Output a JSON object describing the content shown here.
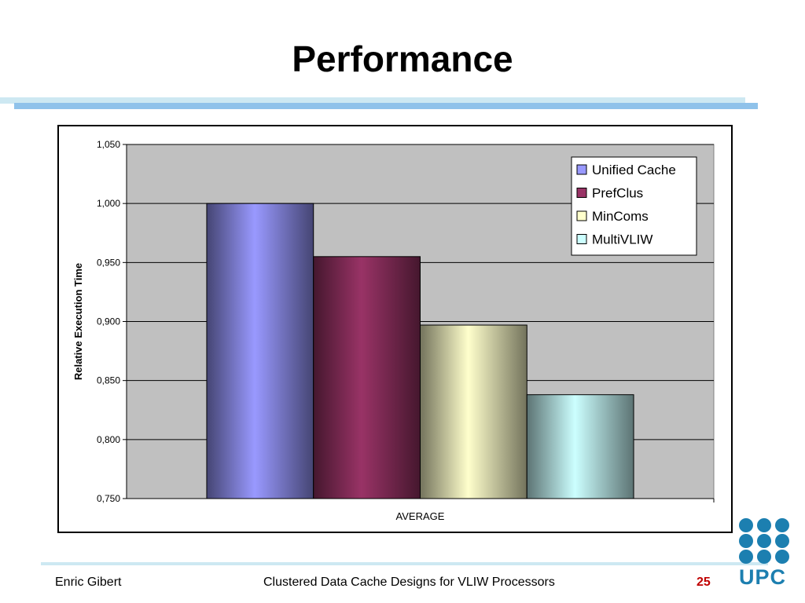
{
  "slide": {
    "title": "Performance",
    "footer_author": "Enric Gibert",
    "footer_center": "Clustered Data Cache Designs for VLIW Processors",
    "page_number": "25",
    "logo_text": "UPC",
    "logo_color": "#1c7fb0"
  },
  "chart_data": {
    "type": "bar",
    "title": "",
    "xlabel": "",
    "ylabel": "Relative Execution Time",
    "categories": [
      "AVERAGE"
    ],
    "series": [
      {
        "name": "Unified Cache",
        "values": [
          1.0
        ],
        "color": "#9999ff"
      },
      {
        "name": "PrefClus",
        "values": [
          0.955
        ],
        "color": "#993366"
      },
      {
        "name": "MinComs",
        "values": [
          0.897
        ],
        "color": "#ffffcc"
      },
      {
        "name": "MultiVLIW",
        "values": [
          0.838
        ],
        "color": "#ccffff"
      }
    ],
    "ylim": [
      0.75,
      1.05
    ],
    "yticks": [
      0.75,
      0.8,
      0.85,
      0.9,
      0.95,
      1.0,
      1.05
    ],
    "ytick_labels": [
      "0,750",
      "0,800",
      "0,850",
      "0,900",
      "0,950",
      "1,000",
      "1,050"
    ],
    "grid": true,
    "plot_background": "#c0c0c0",
    "legend_position": "top-right"
  }
}
